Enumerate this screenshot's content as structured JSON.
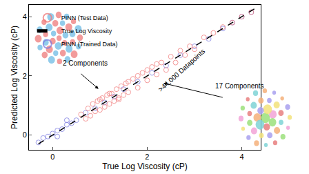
{
  "chart_data": {
    "type": "scatter",
    "x_label": "True Log Viscosity (cP)",
    "y_label": "Predicted Log Viscosity (cP)",
    "xlim": [
      -0.5,
      4.4
    ],
    "ylim": [
      -0.5,
      4.4
    ],
    "xticks": [
      0,
      2,
      4
    ],
    "yticks": [
      0,
      2,
      4
    ],
    "grid": false,
    "legend": "upper left",
    "annotations": [
      "2 Components",
      ">44,000 Datapoints",
      "17 Components"
    ],
    "series": [
      {
        "name": "PINN (Test Data)",
        "type": "scatter",
        "marker": "circle-open",
        "color": "#f07a7a",
        "x": [
          0.6,
          0.7,
          0.75,
          0.8,
          0.85,
          0.9,
          0.95,
          1.0,
          1.05,
          1.1,
          1.15,
          1.2,
          1.25,
          1.3,
          1.35,
          1.4,
          1.45,
          1.5,
          1.55,
          1.6,
          1.7,
          1.8,
          1.9,
          2.0,
          2.1,
          2.2,
          2.3,
          2.4,
          2.5,
          2.6,
          2.7,
          2.8,
          2.9,
          3.0,
          3.2,
          3.4,
          3.6,
          3.8,
          4.0,
          4.2,
          1.0,
          1.2,
          1.4,
          1.6,
          1.8,
          2.0,
          2.2
        ],
        "values": [
          0.7,
          0.55,
          0.9,
          0.65,
          1.05,
          0.8,
          1.15,
          0.85,
          1.25,
          0.95,
          1.35,
          1.05,
          1.4,
          1.15,
          1.55,
          1.25,
          1.65,
          1.35,
          1.75,
          1.45,
          1.9,
          1.6,
          2.1,
          1.85,
          2.3,
          2.05,
          2.45,
          2.2,
          2.65,
          2.45,
          2.85,
          2.7,
          3.0,
          2.9,
          3.3,
          3.45,
          3.65,
          3.8,
          4.0,
          4.15,
          1.2,
          1.4,
          1.2,
          1.8,
          2.0,
          2.2,
          2.4
        ]
      },
      {
        "name": "True Log Viscosity",
        "type": "line",
        "line_style": "dashed",
        "color": "#000000",
        "x": [
          -0.3,
          4.3
        ],
        "values": [
          -0.3,
          4.3
        ]
      },
      {
        "name": "PINN (Trained Data)",
        "type": "scatter",
        "marker": "circle-open",
        "color": "#7b7be0",
        "x": [
          -0.3,
          -0.2,
          -0.1,
          0.0,
          0.1,
          0.1,
          0.2,
          0.3,
          0.3,
          0.4,
          0.5,
          0.7,
          0.9,
          1.1,
          1.3,
          1.5,
          1.8,
          2.1,
          2.4,
          2.7,
          3.0,
          3.3,
          3.6,
          3.8,
          4.0,
          4.2
        ],
        "values": [
          -0.25,
          -0.1,
          -0.05,
          0.05,
          0.15,
          -0.05,
          0.2,
          0.35,
          0.5,
          0.4,
          0.5,
          0.75,
          0.9,
          1.1,
          1.3,
          1.55,
          1.8,
          2.1,
          2.35,
          2.7,
          3.0,
          3.25,
          3.6,
          3.8,
          4.0,
          4.15
        ]
      }
    ]
  }
}
